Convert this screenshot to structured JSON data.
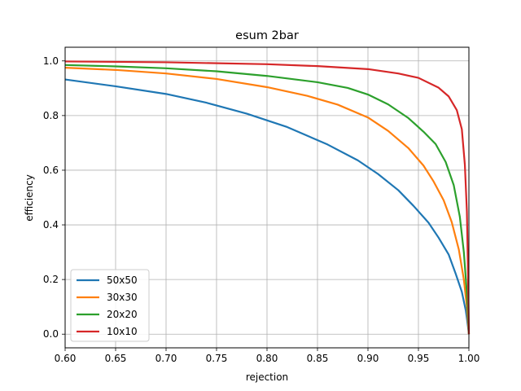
{
  "chart_data": {
    "type": "line",
    "title": "esum 2bar",
    "xlabel": "rejection",
    "ylabel": "efficiency",
    "xlim": [
      0.6,
      1.0
    ],
    "ylim": [
      -0.05,
      1.05
    ],
    "xticks": [
      0.6,
      0.65,
      0.7,
      0.75,
      0.8,
      0.85,
      0.9,
      0.95,
      1.0
    ],
    "xtick_labels": [
      "0.60",
      "0.65",
      "0.70",
      "0.75",
      "0.80",
      "0.85",
      "0.90",
      "0.95",
      "1.00"
    ],
    "yticks": [
      0.0,
      0.2,
      0.4,
      0.6,
      0.8,
      1.0
    ],
    "ytick_labels": [
      "0.0",
      "0.2",
      "0.4",
      "0.6",
      "0.8",
      "1.0"
    ],
    "grid": true,
    "legend_position": "lower-left",
    "series": [
      {
        "name": "50x50",
        "color": "#1f77b4",
        "points": [
          [
            0.6,
            0.932
          ],
          [
            0.65,
            0.907
          ],
          [
            0.7,
            0.879
          ],
          [
            0.74,
            0.847
          ],
          [
            0.78,
            0.807
          ],
          [
            0.82,
            0.758
          ],
          [
            0.86,
            0.694
          ],
          [
            0.89,
            0.636
          ],
          [
            0.91,
            0.586
          ],
          [
            0.93,
            0.527
          ],
          [
            0.945,
            0.47
          ],
          [
            0.96,
            0.408
          ],
          [
            0.97,
            0.353
          ],
          [
            0.98,
            0.291
          ],
          [
            0.987,
            0.22
          ],
          [
            0.993,
            0.155
          ],
          [
            0.997,
            0.085
          ],
          [
            0.999,
            0.03
          ],
          [
            1.0,
            0.0
          ]
        ]
      },
      {
        "name": "30x30",
        "color": "#ff7f0e",
        "points": [
          [
            0.6,
            0.975
          ],
          [
            0.65,
            0.967
          ],
          [
            0.7,
            0.954
          ],
          [
            0.75,
            0.934
          ],
          [
            0.8,
            0.904
          ],
          [
            0.84,
            0.872
          ],
          [
            0.87,
            0.84
          ],
          [
            0.9,
            0.793
          ],
          [
            0.92,
            0.744
          ],
          [
            0.94,
            0.681
          ],
          [
            0.955,
            0.617
          ],
          [
            0.965,
            0.559
          ],
          [
            0.975,
            0.49
          ],
          [
            0.983,
            0.41
          ],
          [
            0.99,
            0.31
          ],
          [
            0.995,
            0.2
          ],
          [
            0.998,
            0.1
          ],
          [
            1.0,
            0.0
          ]
        ]
      },
      {
        "name": "20x20",
        "color": "#2ca02c",
        "points": [
          [
            0.6,
            0.985
          ],
          [
            0.65,
            0.98
          ],
          [
            0.7,
            0.973
          ],
          [
            0.75,
            0.962
          ],
          [
            0.8,
            0.945
          ],
          [
            0.85,
            0.922
          ],
          [
            0.88,
            0.901
          ],
          [
            0.9,
            0.877
          ],
          [
            0.92,
            0.841
          ],
          [
            0.94,
            0.791
          ],
          [
            0.955,
            0.741
          ],
          [
            0.967,
            0.696
          ],
          [
            0.977,
            0.63
          ],
          [
            0.985,
            0.545
          ],
          [
            0.991,
            0.43
          ],
          [
            0.995,
            0.3
          ],
          [
            0.998,
            0.15
          ],
          [
            1.0,
            0.0
          ]
        ]
      },
      {
        "name": "10x10",
        "color": "#d62728",
        "points": [
          [
            0.6,
            0.998
          ],
          [
            0.7,
            0.995
          ],
          [
            0.8,
            0.988
          ],
          [
            0.85,
            0.981
          ],
          [
            0.9,
            0.97
          ],
          [
            0.93,
            0.954
          ],
          [
            0.95,
            0.938
          ],
          [
            0.97,
            0.902
          ],
          [
            0.98,
            0.87
          ],
          [
            0.988,
            0.82
          ],
          [
            0.993,
            0.75
          ],
          [
            0.996,
            0.62
          ],
          [
            0.998,
            0.45
          ],
          [
            0.999,
            0.25
          ],
          [
            1.0,
            0.0
          ]
        ]
      }
    ]
  }
}
